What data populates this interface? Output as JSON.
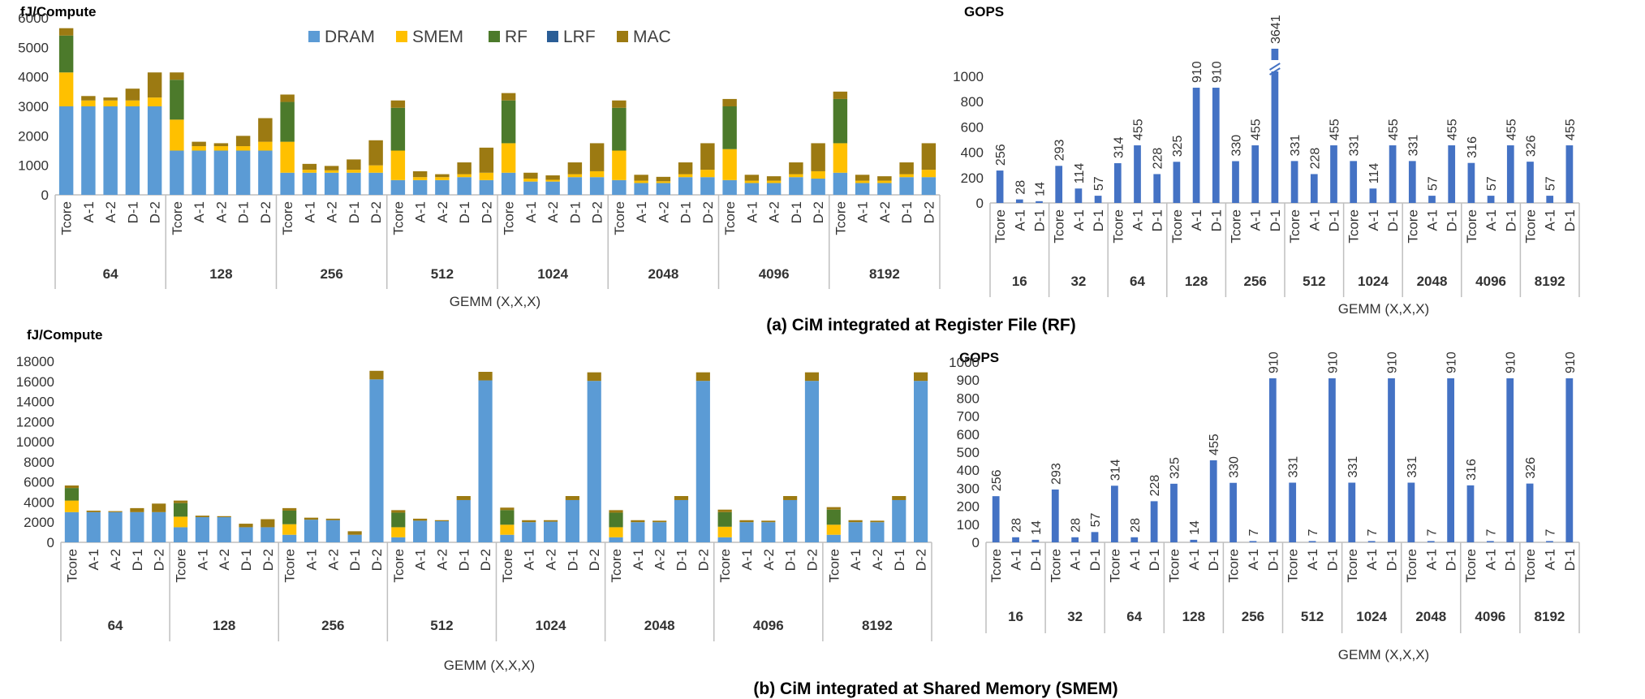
{
  "captions": {
    "a": "(a) CiM integrated at Register File (RF)",
    "b": "(b) CiM integrated at Shared Memory (SMEM)"
  },
  "colors": {
    "DRAM": "#5b9bd5",
    "SMEM": "#ffc000",
    "RF": "#4c7a2b",
    "LRF": "#2a5d96",
    "MAC": "#9c7a12",
    "gops_bar": "#4472c4",
    "axis": "#bfbfbf"
  },
  "chart_data": [
    {
      "id": "energy_rf",
      "type": "bar",
      "stacked": true,
      "ylabel": "fJ/Compute",
      "xlabel": "GEMM (X,X,X)",
      "ylim": [
        0,
        6000
      ],
      "yticks": [
        0,
        1000,
        2000,
        3000,
        4000,
        5000,
        6000
      ],
      "legend": [
        "DRAM",
        "SMEM",
        "RF",
        "LRF",
        "MAC"
      ],
      "legend_position": "top-center",
      "groups": [
        "64",
        "128",
        "256",
        "512",
        "1024",
        "2048",
        "4096",
        "8192"
      ],
      "categories": [
        "Tcore",
        "A-1",
        "A-2",
        "D-1",
        "D-2"
      ],
      "series": [
        {
          "name": "DRAM",
          "values": [
            [
              3000,
              3000,
              3000,
              3000,
              3000
            ],
            [
              1500,
              1500,
              1500,
              1500,
              1500
            ],
            [
              750,
              750,
              750,
              750,
              750
            ],
            [
              500,
              500,
              500,
              600,
              500
            ],
            [
              750,
              450,
              450,
              600,
              600
            ],
            [
              500,
              400,
              400,
              600,
              600
            ],
            [
              500,
              400,
              400,
              600,
              550
            ],
            [
              750,
              400,
              400,
              600,
              600
            ]
          ]
        },
        {
          "name": "SMEM",
          "values": [
            [
              1150,
              200,
              200,
              200,
              300
            ],
            [
              1050,
              150,
              150,
              150,
              300
            ],
            [
              1050,
              100,
              80,
              100,
              250
            ],
            [
              1000,
              100,
              100,
              100,
              250
            ],
            [
              1000,
              100,
              60,
              100,
              200
            ],
            [
              1000,
              80,
              60,
              100,
              250
            ],
            [
              1050,
              80,
              80,
              100,
              250
            ],
            [
              1000,
              80,
              80,
              100,
              250
            ]
          ]
        },
        {
          "name": "RF",
          "values": [
            [
              1250,
              0,
              0,
              0,
              0
            ],
            [
              1350,
              0,
              0,
              0,
              0
            ],
            [
              1350,
              0,
              0,
              0,
              0
            ],
            [
              1450,
              0,
              0,
              0,
              0
            ],
            [
              1450,
              0,
              0,
              0,
              0
            ],
            [
              1450,
              0,
              0,
              0,
              0
            ],
            [
              1450,
              0,
              0,
              0,
              0
            ],
            [
              1500,
              0,
              0,
              0,
              0
            ]
          ]
        },
        {
          "name": "LRF",
          "values": [
            [
              0,
              0,
              0,
              0,
              0
            ],
            [
              0,
              0,
              0,
              0,
              0
            ],
            [
              0,
              0,
              0,
              0,
              0
            ],
            [
              0,
              0,
              0,
              0,
              0
            ],
            [
              0,
              0,
              0,
              0,
              0
            ],
            [
              0,
              0,
              0,
              0,
              0
            ],
            [
              0,
              0,
              0,
              0,
              0
            ],
            [
              0,
              0,
              0,
              0,
              0
            ]
          ]
        },
        {
          "name": "MAC",
          "values": [
            [
              250,
              150,
              100,
              400,
              850
            ],
            [
              250,
              150,
              100,
              350,
              800
            ],
            [
              250,
              200,
              150,
              350,
              850
            ],
            [
              250,
              200,
              100,
              400,
              850
            ],
            [
              250,
              200,
              150,
              400,
              950
            ],
            [
              250,
              200,
              150,
              400,
              900
            ],
            [
              250,
              200,
              150,
              400,
              950
            ],
            [
              250,
              200,
              150,
              400,
              900
            ]
          ]
        }
      ]
    },
    {
      "id": "gops_rf",
      "type": "bar",
      "ylabel": "GOPS",
      "xlabel": "GEMM (X,X,X)",
      "ylim": [
        0,
        1000
      ],
      "yticks": [
        0,
        200,
        400,
        600,
        800,
        1000
      ],
      "axis_break_at": 3641,
      "groups": [
        "16",
        "32",
        "64",
        "128",
        "256",
        "512",
        "1024",
        "2048",
        "4096",
        "8192"
      ],
      "categories": [
        "Tcore",
        "A-1",
        "D-1"
      ],
      "values": [
        [
          256,
          28,
          14
        ],
        [
          293,
          114,
          57
        ],
        [
          314,
          455,
          228
        ],
        [
          325,
          910,
          910
        ],
        [
          330,
          455,
          3641
        ],
        [
          331,
          228,
          455
        ],
        [
          331,
          114,
          455
        ],
        [
          331,
          57,
          455
        ],
        [
          316,
          57,
          455
        ],
        [
          326,
          57,
          455
        ]
      ]
    },
    {
      "id": "energy_smem",
      "type": "bar",
      "stacked": true,
      "ylabel": "fJ/Compute",
      "xlabel": "GEMM (X,X,X)",
      "ylim": [
        0,
        18000
      ],
      "yticks": [
        0,
        2000,
        4000,
        6000,
        8000,
        10000,
        12000,
        14000,
        16000,
        18000
      ],
      "groups": [
        "64",
        "128",
        "256",
        "512",
        "1024",
        "2048",
        "4096",
        "8192"
      ],
      "categories": [
        "Tcore",
        "A-1",
        "A-2",
        "D-1",
        "D-2"
      ],
      "series": [
        {
          "name": "DRAM",
          "values": [
            [
              3000,
              3000,
              3000,
              3000,
              3000
            ],
            [
              1500,
              2500,
              2500,
              1500,
              1500
            ],
            [
              750,
              2250,
              2200,
              750,
              16200
            ],
            [
              500,
              2150,
              2100,
              4200,
              16100
            ],
            [
              750,
              2000,
              2050,
              4200,
              16050
            ],
            [
              500,
              2000,
              2000,
              4200,
              16050
            ],
            [
              500,
              2000,
              2000,
              4200,
              16050
            ],
            [
              750,
              2000,
              2000,
              4200,
              16050
            ]
          ]
        },
        {
          "name": "SMEM",
          "values": [
            [
              1150,
              0,
              0,
              0,
              0
            ],
            [
              1050,
              0,
              0,
              0,
              0
            ],
            [
              1050,
              0,
              0,
              0,
              0
            ],
            [
              1000,
              0,
              0,
              0,
              0
            ],
            [
              1000,
              0,
              0,
              0,
              0
            ],
            [
              1000,
              0,
              0,
              0,
              0
            ],
            [
              1050,
              0,
              0,
              0,
              0
            ],
            [
              1000,
              0,
              0,
              0,
              0
            ]
          ]
        },
        {
          "name": "RF",
          "values": [
            [
              1250,
              0,
              0,
              0,
              0
            ],
            [
              1350,
              0,
              0,
              0,
              0
            ],
            [
              1350,
              0,
              0,
              0,
              0
            ],
            [
              1450,
              0,
              0,
              0,
              0
            ],
            [
              1450,
              0,
              0,
              0,
              0
            ],
            [
              1450,
              0,
              0,
              0,
              0
            ],
            [
              1450,
              0,
              0,
              0,
              0
            ],
            [
              1500,
              0,
              0,
              0,
              0
            ]
          ]
        },
        {
          "name": "LRF",
          "values": [
            [
              0,
              0,
              0,
              0,
              0
            ],
            [
              0,
              0,
              0,
              0,
              0
            ],
            [
              0,
              0,
              0,
              0,
              0
            ],
            [
              0,
              0,
              0,
              0,
              0
            ],
            [
              0,
              0,
              0,
              0,
              0
            ],
            [
              0,
              0,
              0,
              0,
              0
            ],
            [
              0,
              0,
              0,
              0,
              0
            ],
            [
              0,
              0,
              0,
              0,
              0
            ]
          ]
        },
        {
          "name": "MAC",
          "values": [
            [
              250,
              150,
              100,
              400,
              850
            ],
            [
              250,
              150,
              100,
              350,
              800
            ],
            [
              250,
              200,
              150,
              350,
              850
            ],
            [
              250,
              200,
              100,
              400,
              850
            ],
            [
              250,
              200,
              150,
              400,
              850
            ],
            [
              250,
              200,
              150,
              400,
              850
            ],
            [
              250,
              200,
              150,
              400,
              850
            ],
            [
              250,
              200,
              150,
              400,
              850
            ]
          ]
        }
      ]
    },
    {
      "id": "gops_smem",
      "type": "bar",
      "ylabel": "GOPS",
      "xlabel": "GEMM (X,X,X)",
      "ylim": [
        0,
        1000
      ],
      "yticks": [
        0,
        100,
        200,
        300,
        400,
        500,
        600,
        700,
        800,
        900,
        1000
      ],
      "groups": [
        "16",
        "32",
        "64",
        "128",
        "256",
        "512",
        "1024",
        "2048",
        "4096",
        "8192"
      ],
      "categories": [
        "Tcore",
        "A-1",
        "D-1"
      ],
      "values": [
        [
          256,
          28,
          14
        ],
        [
          293,
          28,
          57
        ],
        [
          314,
          28,
          228
        ],
        [
          325,
          14,
          455
        ],
        [
          330,
          7,
          910
        ],
        [
          331,
          7,
          910
        ],
        [
          331,
          7,
          910
        ],
        [
          331,
          7,
          910
        ],
        [
          316,
          7,
          910
        ],
        [
          326,
          7,
          910
        ]
      ]
    }
  ]
}
